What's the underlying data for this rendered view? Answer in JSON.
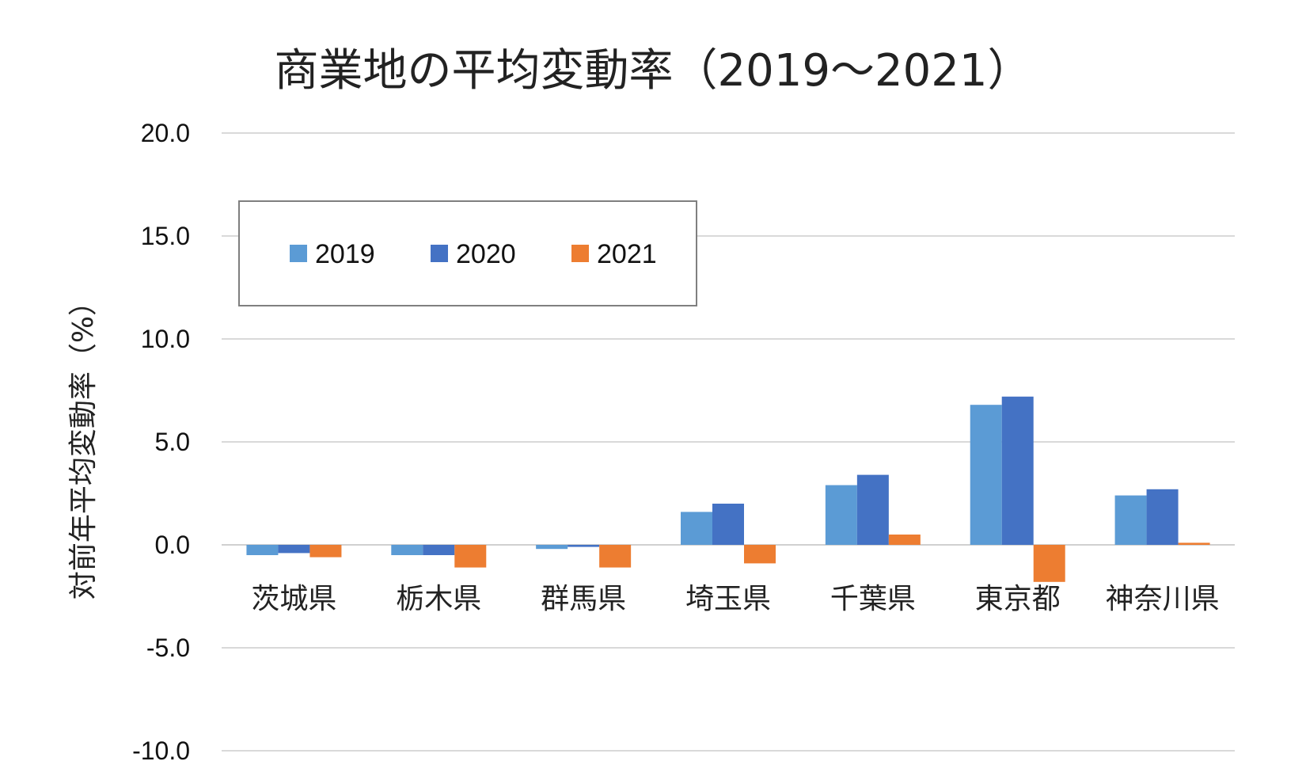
{
  "chart_data": {
    "type": "bar",
    "title": "商業地の平均変動率（2019～2021）",
    "xlabel": "",
    "ylabel": "対前年平均変動率（%）",
    "ylim": [
      -10,
      20
    ],
    "y_ticks": [
      "20.0",
      "15.0",
      "10.0",
      "5.0",
      "0.0",
      "-5.0",
      "-10.0"
    ],
    "y_tick_values": [
      20,
      15,
      10,
      5,
      0,
      -5,
      -10
    ],
    "grid": true,
    "legend_position": "top-left",
    "categories": [
      "茨城県",
      "栃木県",
      "群馬県",
      "埼玉県",
      "千葉県",
      "東京都",
      "神奈川県"
    ],
    "series": [
      {
        "name": "2019",
        "color": "#5B9BD5",
        "values": [
          -0.5,
          -0.5,
          -0.2,
          1.6,
          2.9,
          6.8,
          2.4
        ]
      },
      {
        "name": "2020",
        "color": "#4472C4",
        "values": [
          -0.4,
          -0.5,
          -0.1,
          2.0,
          3.4,
          7.2,
          2.7
        ]
      },
      {
        "name": "2021",
        "color": "#ED7D31",
        "values": [
          -0.6,
          -1.1,
          -1.1,
          -0.9,
          0.5,
          -1.8,
          0.1
        ]
      }
    ]
  }
}
